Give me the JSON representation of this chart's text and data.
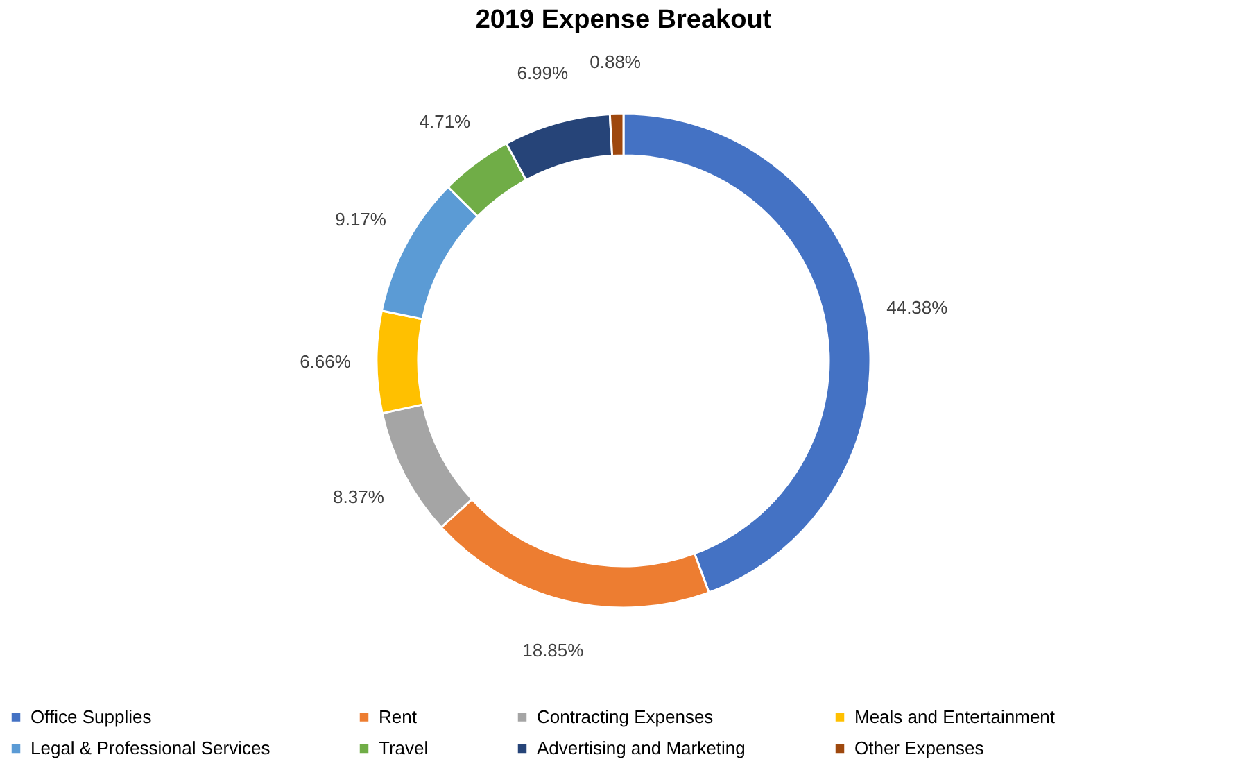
{
  "chart_data": {
    "type": "donut",
    "title": "2019 Expense Breakout",
    "categories": [
      "Office Supplies",
      "Rent",
      "Contracting Expenses",
      "Meals and Entertainment",
      "Legal & Professional Services",
      "Travel",
      "Advertising and Marketing",
      "Other Expenses"
    ],
    "values": [
      44.38,
      18.85,
      8.37,
      6.66,
      9.17,
      4.71,
      6.99,
      0.88
    ],
    "value_labels": [
      "44.38%",
      "18.85%",
      "8.37%",
      "6.66%",
      "9.17%",
      "4.71%",
      "6.99%",
      "0.88%"
    ],
    "colors": [
      "#4472c4",
      "#ed7d31",
      "#a5a5a5",
      "#ffc000",
      "#5b9bd5",
      "#70ad47",
      "#264478",
      "#9e480e"
    ],
    "legend": "bottom"
  }
}
